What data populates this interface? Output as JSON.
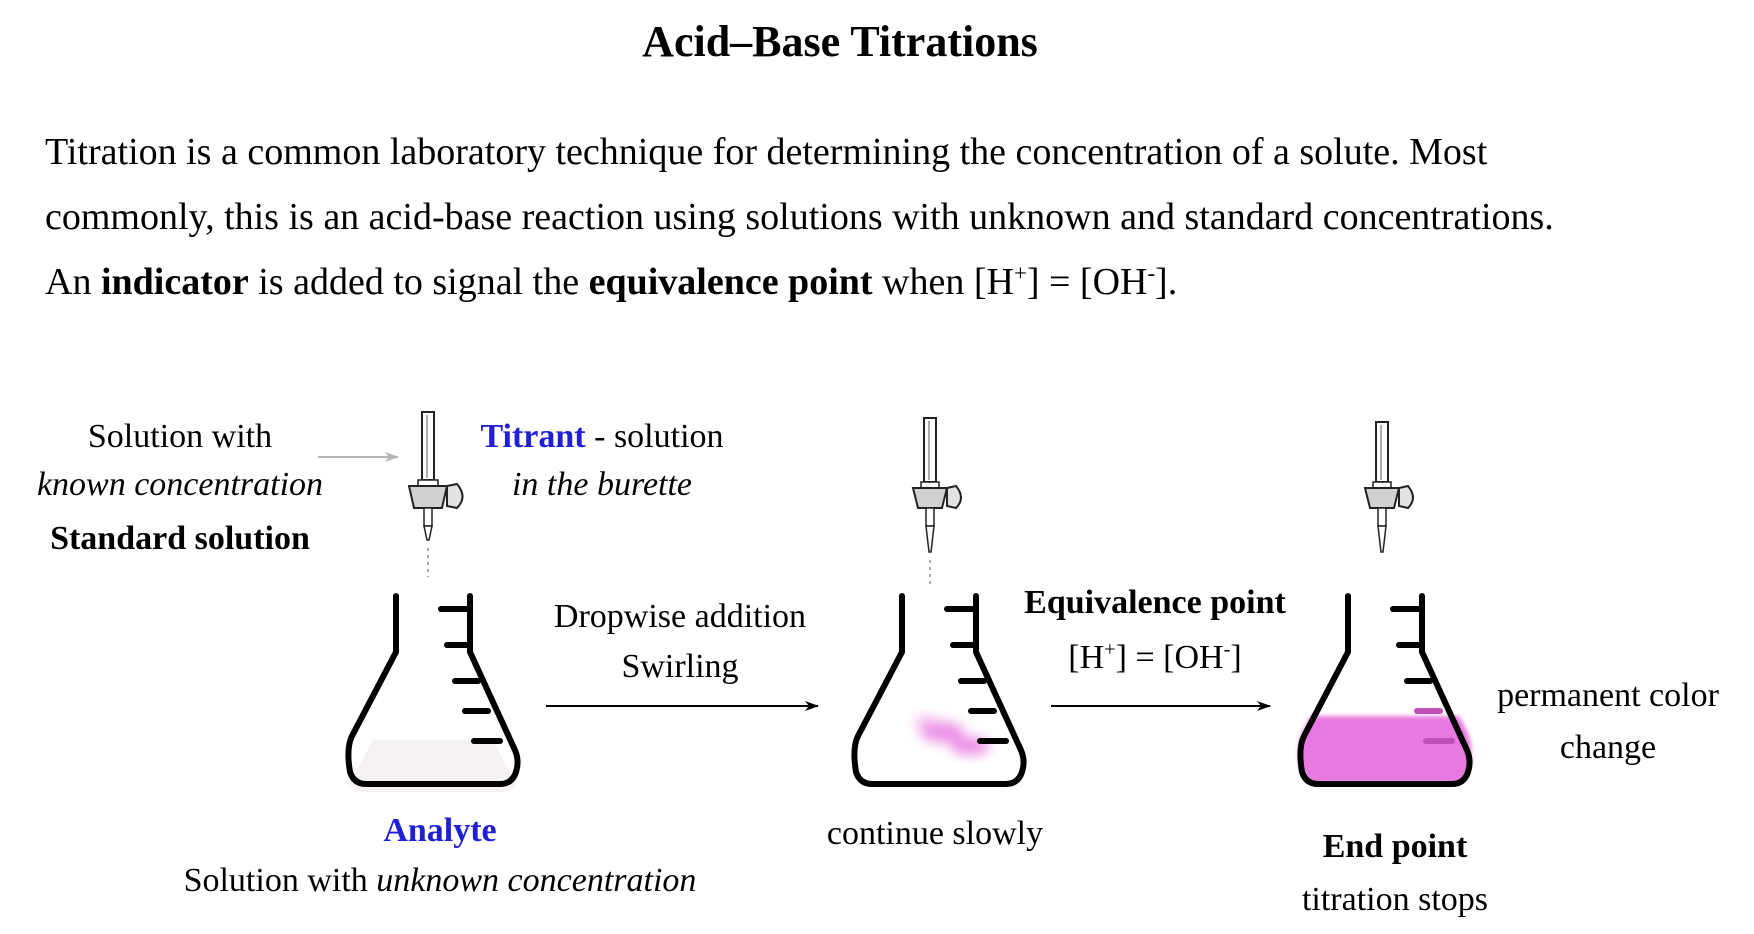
{
  "title": "Acid–Base Titrations",
  "intro": {
    "line1": "Titration is a common laboratory technique for determining the concentration of a solute. Most",
    "line2": "commonly, this is an acid-base reaction using solutions with unknown and standard concentrations.",
    "line3_a": "An ",
    "line3_indicator": "indicator",
    "line3_b": " is added to signal the ",
    "line3_equiv": "equivalence point",
    "line3_c": " when ",
    "line3_formula": {
      "h_open": "[H",
      "h_sup": "+",
      "mid": "] = [OH",
      "oh_sup": "-",
      "end": "]."
    }
  },
  "left_labels": {
    "line1": "Solution with",
    "line2": "known concentration",
    "line3": "Standard solution"
  },
  "titrant": {
    "name": "Titrant",
    "rest": " - solution",
    "line2": "in the burette"
  },
  "step1_arrow": {
    "line1": "Dropwise addition",
    "line2": "Swirling"
  },
  "step2_arrow": {
    "title": "Equivalence point",
    "formula": {
      "h_open": "[H",
      "h_sup": "+",
      "mid": "] = [OH",
      "oh_sup": "-",
      "end": "]"
    }
  },
  "analyte": {
    "name": "Analyte",
    "desc_a": "Solution with ",
    "desc_b": "unknown concentration"
  },
  "middle_flask_label": "continue slowly",
  "end_point": {
    "title": "End point",
    "subtitle": "titration stops"
  },
  "color_change": {
    "line1": "permanent color",
    "line2": "change"
  },
  "colors": {
    "accent_blue": "#1f1fd6",
    "indicator_pink": "#e879e0",
    "analyte_fill": "#f4f1f0"
  }
}
